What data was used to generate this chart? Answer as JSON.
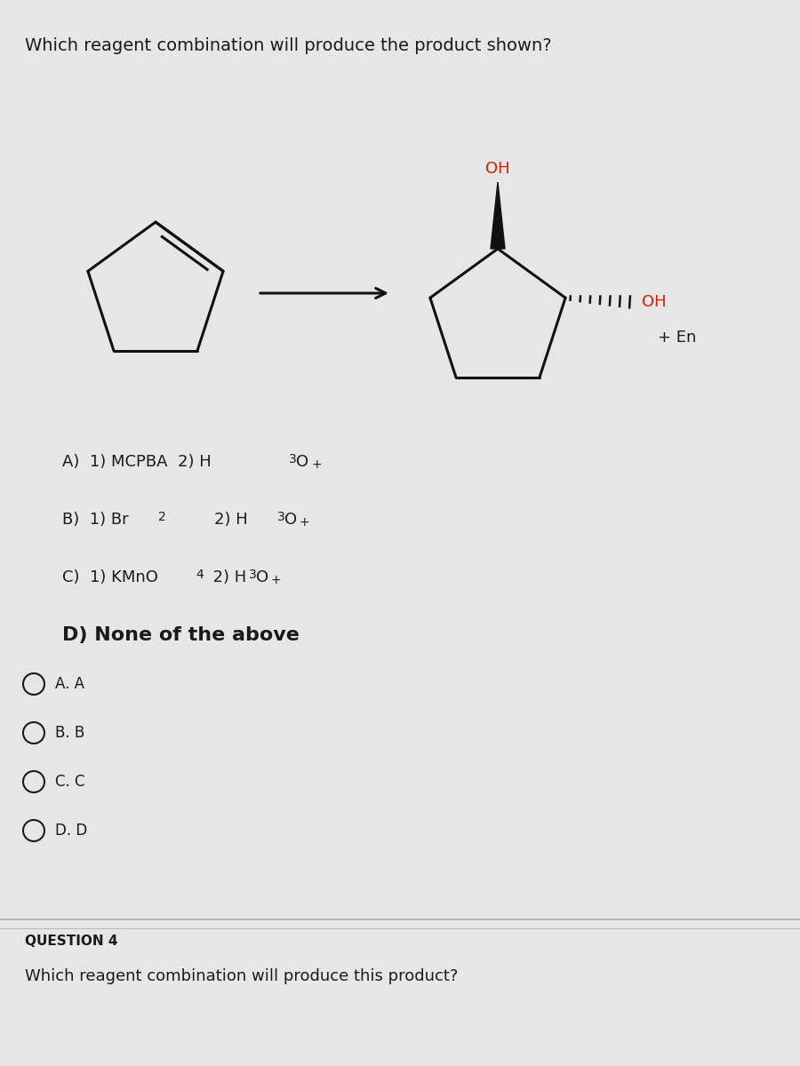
{
  "title": "Which reagent combination will produce the product shown?",
  "title_fontsize": 14,
  "background_color": "#e6e6e6",
  "options_text": [
    [
      "A)  1) MCPBA  2) H",
      "3",
      "O",
      "+"
    ],
    [
      "B)  1) Br",
      "2",
      "        2) H",
      "3",
      "O",
      "+"
    ],
    [
      "C)  1) KMnO",
      "4",
      "  2) H",
      "3",
      "O",
      "+"
    ],
    [
      "D) None of the above"
    ]
  ],
  "radio_options": [
    "A. A",
    "B. B",
    "C. C",
    "D. D"
  ],
  "plus_en": "+ En",
  "oh_color": "#cc2200",
  "text_color": "#1a1a1a",
  "question4_label": "QUESTION 4",
  "question4_text": "Which reagent combination will produce this product?",
  "arrow_color": "#111111",
  "line_color": "#111111",
  "option_fontsize": 13,
  "radio_fontsize": 12
}
